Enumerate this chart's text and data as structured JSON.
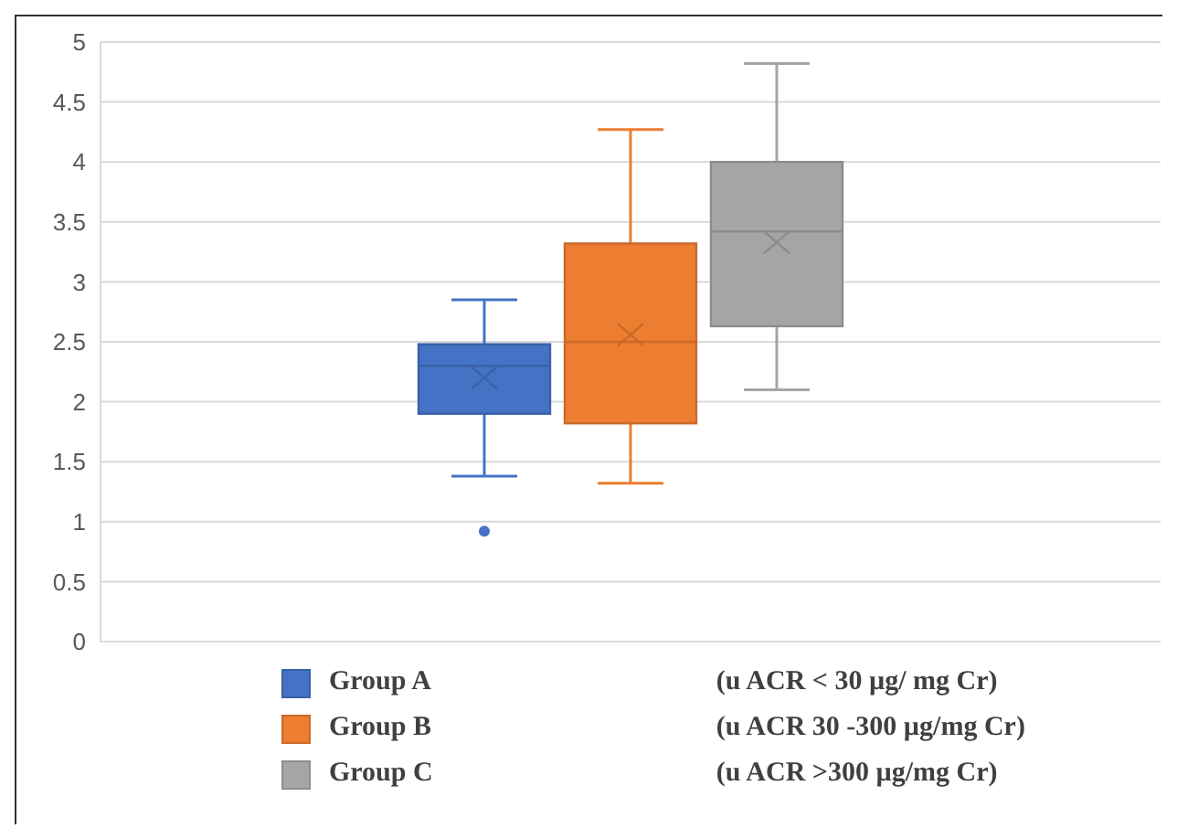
{
  "chart_data": {
    "type": "box",
    "categories": [
      null
    ],
    "ylim": [
      0,
      5
    ],
    "yticks": [
      0,
      0.5,
      1,
      1.5,
      2,
      2.5,
      3,
      3.5,
      4,
      4.5,
      5
    ],
    "grid": "y",
    "legend": "bottom",
    "series": [
      {
        "name": "Group A",
        "color": "#4472c4",
        "boxes": [
          {
            "low": 1.38,
            "q1": 1.9,
            "median": 2.3,
            "q3": 2.48,
            "high": 2.85,
            "mean": 2.2,
            "outliers": [
              0.92
            ]
          }
        ]
      },
      {
        "name": "Group B",
        "color": "#ed7d31",
        "boxes": [
          {
            "low": 1.32,
            "q1": 1.82,
            "median": 2.5,
            "q3": 3.32,
            "high": 4.27,
            "mean": 2.56
          }
        ]
      },
      {
        "name": "Group C",
        "color": "#a5a5a5",
        "boxes": [
          {
            "low": 2.1,
            "q1": 2.63,
            "median": 3.42,
            "q3": 4.0,
            "high": 4.82,
            "mean": 3.33
          }
        ]
      }
    ],
    "annotations": [
      "(u ACR < 30 µg/ mg Cr)",
      "(u ACR 30 -300 µg/mg Cr)",
      "(u ACR >300 µg/mg Cr)"
    ]
  }
}
